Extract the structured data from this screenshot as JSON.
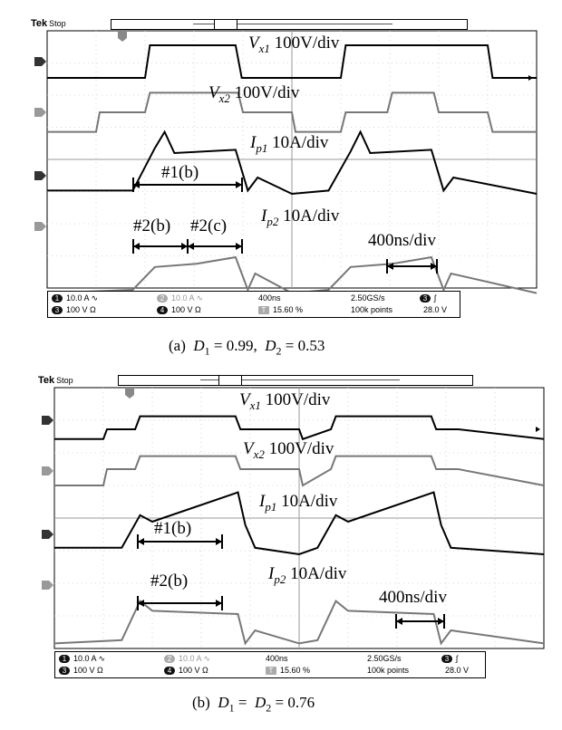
{
  "panels": [
    {
      "id": "a",
      "scope_label": "Tek",
      "scope_state": "Stop",
      "trace_labels": [
        {
          "sym": "V",
          "sub": "x1",
          "scale": "100V/div"
        },
        {
          "sym": "V",
          "sub": "x2",
          "scale": "100V/div"
        },
        {
          "sym": "I",
          "sub": "p1",
          "scale": "10A/div"
        },
        {
          "sym": "I",
          "sub": "p2",
          "scale": "10A/div"
        }
      ],
      "intervals": [
        "#1(b)",
        "#2(b)",
        "#2(c)"
      ],
      "timebase_label": "400ns/div",
      "status": {
        "ch1": "10.0 A",
        "ch2": "10.0 A",
        "ch3": "100 V",
        "ch4": "100 V",
        "timebase": "400ns",
        "sample_rate": "2.50GS/s",
        "trig_pos": "15.60 %",
        "record": "100k points",
        "trig_level": "28.0 V",
        "ch1_num": "1",
        "ch2_num": "2",
        "ch3_num": "3",
        "ch4_num": "4",
        "coupling_ac": "∿",
        "coupling_gnd": "Ω",
        "trig_chan": "3",
        "trig_slope": "ʃ",
        "trig_marker": "T"
      },
      "caption": {
        "label": "(a)",
        "eq": "D",
        "sub1": "1",
        "v1": "= 0.99,",
        "sub2": "2",
        "v2": "= 0.53"
      }
    },
    {
      "id": "b",
      "scope_label": "Tek",
      "scope_state": "Stop",
      "trace_labels": [
        {
          "sym": "V",
          "sub": "x1",
          "scale": "100V/div"
        },
        {
          "sym": "V",
          "sub": "x2",
          "scale": "100V/div"
        },
        {
          "sym": "I",
          "sub": "p1",
          "scale": "10A/div"
        },
        {
          "sym": "I",
          "sub": "p2",
          "scale": "10A/div"
        }
      ],
      "intervals": [
        "#1(b)",
        "#2(b)"
      ],
      "timebase_label": "400ns/div",
      "status": {
        "ch1": "10.0 A",
        "ch2": "10.0 A",
        "ch3": "100 V",
        "ch4": "100 V",
        "timebase": "400ns",
        "sample_rate": "2.50GS/s",
        "trig_pos": "15.60 %",
        "record": "100k points",
        "trig_level": "28.0 V",
        "ch1_num": "1",
        "ch2_num": "2",
        "ch3_num": "3",
        "ch4_num": "4",
        "coupling_ac": "∿",
        "coupling_gnd": "Ω",
        "trig_chan": "3",
        "trig_slope": "ʃ",
        "trig_marker": "T"
      },
      "caption": {
        "label": "(b)",
        "eq": "D",
        "sub1": "1",
        "v1": "=",
        "sub2": "2",
        "v2": "= 0.76"
      }
    }
  ],
  "chart_data": [
    {
      "type": "line",
      "title": "",
      "xlabel": "",
      "ylabel": "",
      "x_unit": "ns",
      "x_range": [
        0,
        4000
      ],
      "grid": true,
      "series": [
        {
          "name": "Vx1",
          "scale": "100V/div",
          "x": [
            0,
            800,
            840,
            1000,
            1540,
            1590,
            1700,
            2400,
            2440,
            2600,
            3600,
            3640,
            3700,
            4000
          ],
          "y": [
            0,
            0,
            1.0,
            1.0,
            1.0,
            0.0,
            0.0,
            0.0,
            1.0,
            1.0,
            1.0,
            0.0,
            0.0,
            0.0
          ]
        },
        {
          "name": "Vx2",
          "scale": "100V/div",
          "x": [
            0,
            400,
            430,
            800,
            840,
            1180,
            1220,
            1560,
            1600,
            2000,
            2030,
            2400,
            2440,
            2780,
            2820,
            3160,
            3200,
            3600,
            3640,
            4000
          ],
          "y": [
            -0.6,
            -0.6,
            0,
            0,
            0.6,
            0.6,
            0.6,
            0.6,
            0,
            0,
            -0.6,
            -0.6,
            0,
            0,
            0.6,
            0.6,
            0,
            0,
            -0.6,
            -0.6
          ]
        },
        {
          "name": "Ip1",
          "scale": "10A/div",
          "x": [
            0,
            700,
            880,
            960,
            1040,
            1540,
            1640,
            1720,
            2000,
            2300,
            2480,
            2560,
            2640,
            3140,
            3240,
            3320,
            4000
          ],
          "y": [
            -0.9,
            -0.9,
            0.4,
            0.9,
            0.25,
            0.35,
            -0.9,
            -0.5,
            -1.0,
            -0.9,
            0.3,
            0.9,
            0.25,
            0.35,
            -0.9,
            -0.5,
            -1.0
          ]
        },
        {
          "name": "Ip2",
          "scale": "10A/div",
          "x": [
            0,
            700,
            880,
            1220,
            1540,
            1640,
            1700,
            2000,
            2300,
            2480,
            2820,
            3140,
            3240,
            3300,
            4000
          ],
          "y": [
            -2.1,
            -2.0,
            -1.3,
            -1.2,
            -1.0,
            -2.0,
            -1.5,
            -2.1,
            -2.0,
            -1.3,
            -1.2,
            -1.0,
            -2.0,
            -1.5,
            -2.1
          ]
        }
      ]
    },
    {
      "type": "line",
      "title": "",
      "xlabel": "",
      "ylabel": "",
      "x_unit": "ns",
      "x_range": [
        0,
        4000
      ],
      "grid": true,
      "series": [
        {
          "name": "Vx1",
          "scale": "100V/div",
          "x": [
            0,
            400,
            430,
            660,
            700,
            1480,
            1520,
            1700,
            2000,
            2030,
            2260,
            2300,
            3080,
            3120,
            3300,
            4000
          ],
          "y": [
            -0.3,
            -0.3,
            0,
            0,
            0.4,
            0.4,
            0,
            0,
            0,
            -0.3,
            0,
            0.4,
            0.4,
            0,
            0,
            -0.3
          ]
        },
        {
          "name": "Vx2",
          "scale": "100V/div",
          "x": [
            0,
            400,
            430,
            660,
            700,
            1480,
            1520,
            1700,
            2000,
            2030,
            2260,
            2300,
            3080,
            3120,
            3300,
            4000
          ],
          "y": [
            -0.5,
            -0.5,
            0,
            0,
            0.4,
            0.4,
            0,
            0,
            0,
            -0.5,
            0,
            0.4,
            0.4,
            0,
            0,
            -0.5
          ]
        },
        {
          "name": "Ip1",
          "scale": "10A/div",
          "x": [
            0,
            550,
            700,
            800,
            1500,
            1560,
            1640,
            2000,
            2150,
            2300,
            2400,
            3100,
            3160,
            3240,
            4000
          ],
          "y": [
            -0.8,
            -0.8,
            0.2,
            0.0,
            0.9,
            -0.1,
            -0.8,
            -1.0,
            -0.8,
            0.2,
            0.0,
            0.9,
            -0.1,
            -0.8,
            -1.0
          ]
        },
        {
          "name": "Ip2",
          "scale": "10A/div",
          "x": [
            0,
            550,
            700,
            800,
            1500,
            1560,
            1640,
            2000,
            2150,
            2300,
            2400,
            3100,
            3160,
            3240,
            4000
          ],
          "y": [
            -1.9,
            -1.8,
            -0.6,
            -0.9,
            -1.0,
            -1.9,
            -1.5,
            -1.9,
            -1.8,
            -0.6,
            -0.9,
            -1.0,
            -1.9,
            -1.5,
            -1.9
          ]
        }
      ]
    }
  ]
}
